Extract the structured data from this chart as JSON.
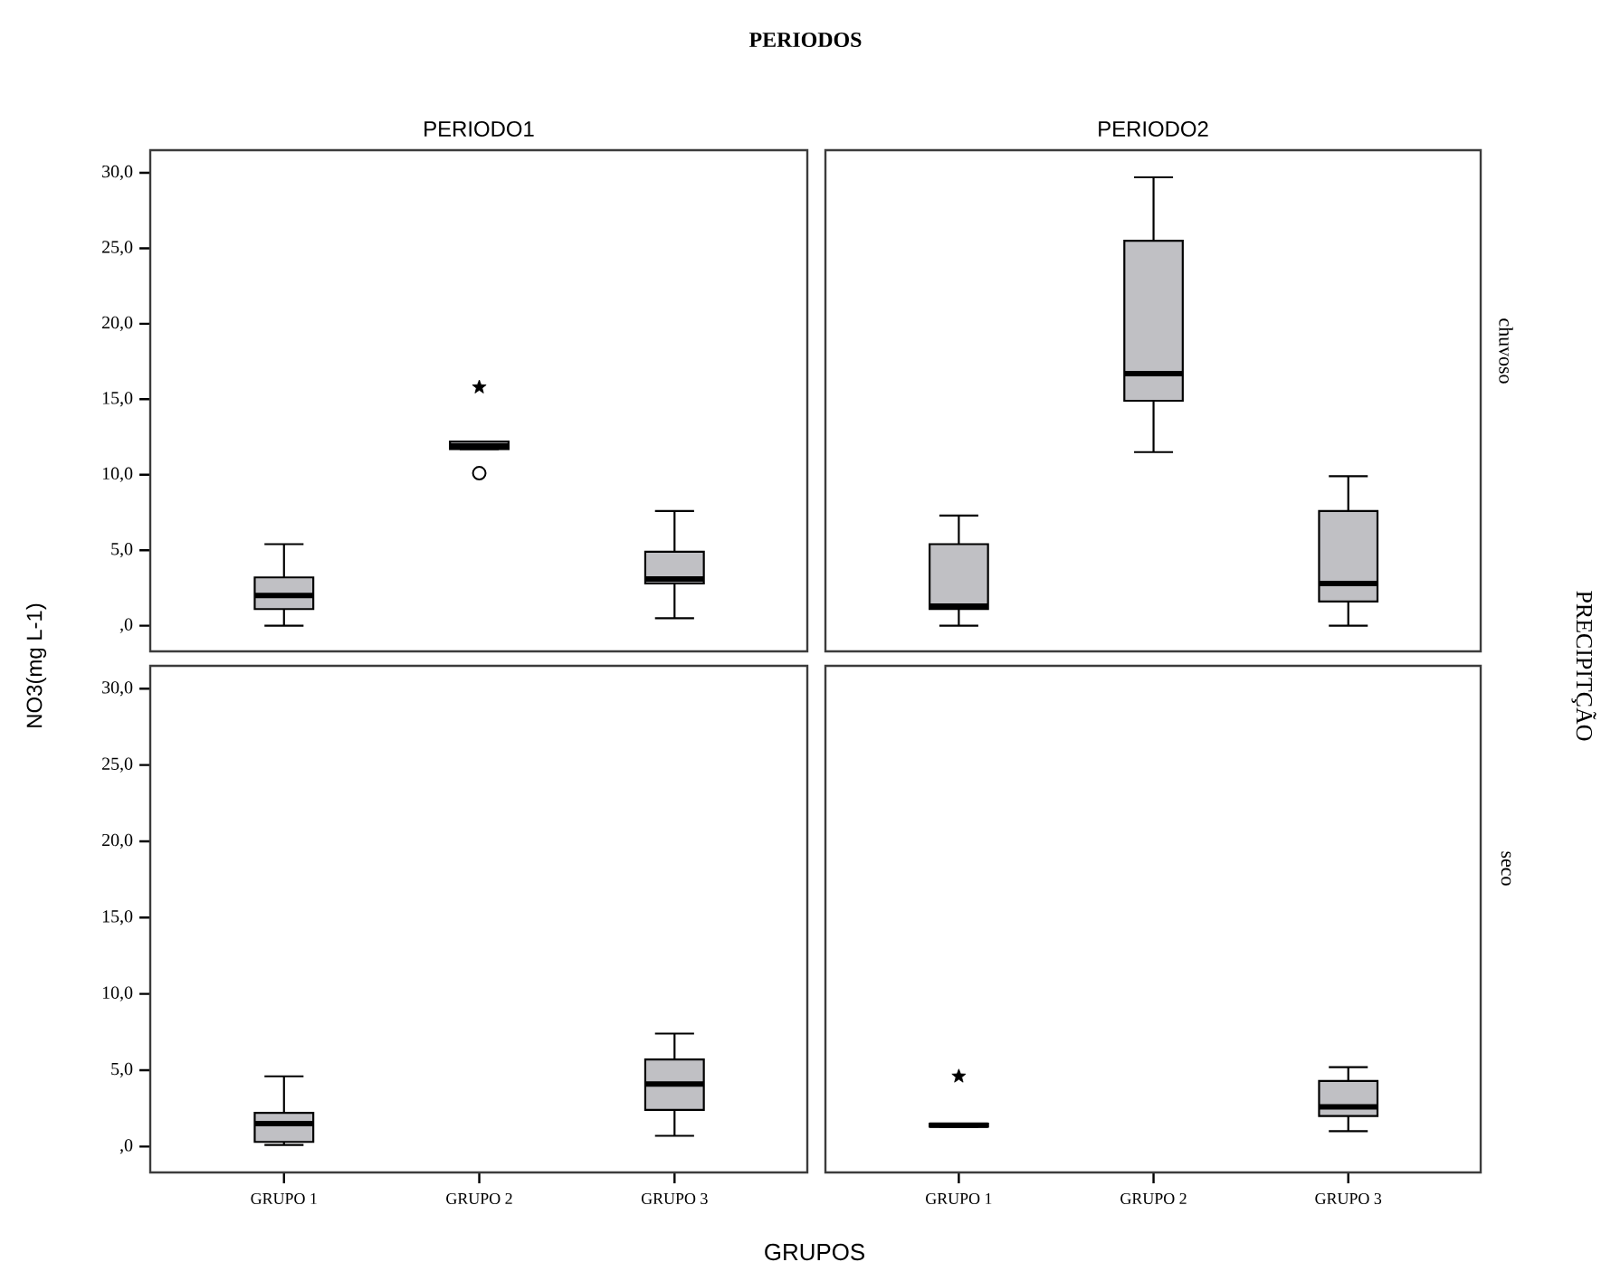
{
  "chart_data": [
    {
      "type": "box",
      "title": "PERIODO1",
      "ylabel": "NO3(mg L-1)",
      "annotations": [
        "PERIODOS"
      ],
      "categories": [
        "GRUPO 1",
        "GRUPO 2",
        "GRUPO 3"
      ],
      "ylim": [
        -1.7,
        31.5
      ],
      "yticks": [
        {
          "value": 0,
          "label": ",0"
        },
        {
          "value": 5,
          "label": "5,0"
        },
        {
          "value": 10,
          "label": "10,0"
        },
        {
          "value": 15,
          "label": "15,0"
        },
        {
          "value": 20,
          "label": "20,0"
        },
        {
          "value": 25,
          "label": "25,0"
        },
        {
          "value": 30,
          "label": "30,0"
        }
      ],
      "tick_labels": "y",
      "series": [
        {
          "type": "box",
          "color": "#c0c0c4",
          "boxes": [
            {
              "low": 0,
              "q1": 1.1,
              "median": 2.0,
              "q3": 3.2,
              "high": 5.4
            },
            {
              "low": 11.7,
              "q1": 11.7,
              "median": 11.9,
              "q3": 12.2,
              "high": 12.2,
              "outliers": [
                10.1
              ]
            },
            {
              "low": 0.5,
              "q1": 2.8,
              "median": 3.1,
              "q3": 4.9,
              "high": 7.6
            }
          ]
        },
        {
          "type": "scatter",
          "marker": "star",
          "color": "#000000",
          "x": [
            "GRUPO 2"
          ],
          "values": [
            15.8
          ]
        }
      ]
    },
    {
      "type": "box",
      "title": "PERIODO2",
      "y2label": "chuvoso",
      "annotations": [
        "PRECIPITÇÃO"
      ],
      "categories": [
        "GRUPO 1",
        "GRUPO 2",
        "GRUPO 3"
      ],
      "ylim": [
        -1.7,
        31.5
      ],
      "tick_labels": false,
      "series": [
        {
          "type": "box",
          "color": "#c0c0c4",
          "boxes": [
            {
              "low": 0,
              "q1": 1.1,
              "median": 1.3,
              "q3": 5.4,
              "high": 7.3
            },
            {
              "low": 11.5,
              "q1": 14.9,
              "median": 16.7,
              "q3": 25.5,
              "high": 29.7
            },
            {
              "low": 0,
              "q1": 1.6,
              "median": 2.8,
              "q3": 7.6,
              "high": 9.9
            }
          ]
        }
      ]
    },
    {
      "type": "box",
      "xlabel": "GRUPOS",
      "categories": [
        "GRUPO 1",
        "GRUPO 2",
        "GRUPO 3"
      ],
      "ylim": [
        -1.7,
        31.5
      ],
      "yticks": [
        {
          "value": 0,
          "label": ",0"
        },
        {
          "value": 5,
          "label": "5,0"
        },
        {
          "value": 10,
          "label": "10,0"
        },
        {
          "value": 15,
          "label": "15,0"
        },
        {
          "value": 20,
          "label": "20,0"
        },
        {
          "value": 25,
          "label": "25,0"
        },
        {
          "value": 30,
          "label": "30,0"
        }
      ],
      "series": [
        {
          "type": "box",
          "color": "#c0c0c4",
          "boxes": [
            {
              "low": 0.1,
              "q1": 0.3,
              "median": 1.5,
              "q3": 2.2,
              "high": 4.6
            },
            null,
            {
              "low": 0.7,
              "q1": 2.4,
              "median": 4.1,
              "q3": 5.7,
              "high": 7.4
            }
          ]
        }
      ]
    },
    {
      "type": "box",
      "y2label": "seco",
      "categories": [
        "GRUPO 1",
        "GRUPO 2",
        "GRUPO 3"
      ],
      "ylim": [
        -1.7,
        31.5
      ],
      "tick_labels": "x",
      "series": [
        {
          "type": "box",
          "color": "#c0c0c4",
          "boxes": [
            {
              "low": 1.3,
              "q1": 1.3,
              "median": 1.4,
              "q3": 1.5,
              "high": 1.5
            },
            null,
            {
              "low": 1.0,
              "q1": 2.0,
              "median": 2.6,
              "q3": 4.3,
              "high": 5.2
            }
          ]
        },
        {
          "type": "scatter",
          "marker": "star",
          "color": "#000000",
          "x": [
            "GRUPO 1"
          ],
          "values": [
            4.6
          ]
        }
      ]
    }
  ]
}
